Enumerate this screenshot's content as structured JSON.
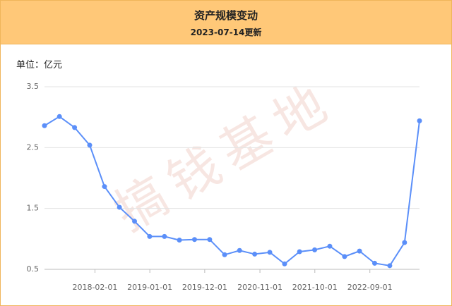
{
  "header": {
    "title": "资产规模变动",
    "subtitle": "2023-07-14更新"
  },
  "chart_data": {
    "type": "line",
    "unit_label": "单位：亿元",
    "watermark": "搞钱基地",
    "x": [
      "2017-03-31",
      "2017-06-30",
      "2017-09-30",
      "2017-12-31",
      "2018-03-31",
      "2018-06-30",
      "2018-09-30",
      "2018-12-31",
      "2019-03-31",
      "2019-06-30",
      "2019-09-30",
      "2019-12-31",
      "2020-03-31",
      "2020-06-30",
      "2020-09-30",
      "2020-12-31",
      "2021-03-31",
      "2021-06-30",
      "2021-09-30",
      "2021-12-31",
      "2022-03-31",
      "2022-06-30",
      "2022-09-30",
      "2022-12-31",
      "2023-03-31",
      "2023-06-30"
    ],
    "series": [
      {
        "name": "资产规模",
        "color": "#5b8ff9",
        "values": [
          2.86,
          3.01,
          2.83,
          2.54,
          1.86,
          1.52,
          1.29,
          1.04,
          1.04,
          0.98,
          0.99,
          0.99,
          0.74,
          0.81,
          0.75,
          0.78,
          0.59,
          0.79,
          0.82,
          0.88,
          0.71,
          0.8,
          0.6,
          0.56,
          0.94,
          2.94
        ]
      }
    ],
    "xlim": [
      "2017-03-31",
      "2023-06-30"
    ],
    "xticks": [
      "2018-02-01",
      "2019-01-01",
      "2019-12-01",
      "2020-11-01",
      "2021-10-01",
      "2022-09-01"
    ],
    "ylim": [
      0.5,
      3.5
    ],
    "yticks": [
      0.5,
      1.5,
      2.5,
      3.5
    ],
    "grid": true
  }
}
